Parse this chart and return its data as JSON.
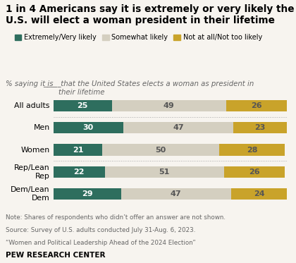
{
  "title": "1 in 4 Americans say it is extremely or very likely the\nU.S. will elect a woman president in their lifetime",
  "subtitle": "% saying it is _____ that the United States elects a woman as president in\ntheir lifetime",
  "subtitle_parts": [
    "% saying it is ",
    "_____",
    " that the United States elects a woman as president in\ntheir lifetime"
  ],
  "categories": [
    "All adults",
    "Men",
    "Women",
    "Rep/Lean\nRep",
    "Dem/Lean\nDem"
  ],
  "extremely_very": [
    25,
    30,
    21,
    22,
    29
  ],
  "somewhat": [
    49,
    47,
    50,
    51,
    47
  ],
  "not_at_all": [
    26,
    23,
    28,
    26,
    24
  ],
  "color_extremely": "#2e6e5e",
  "color_somewhat": "#d4cfc0",
  "color_not_at_all": "#c9a32a",
  "legend_labels": [
    "Extremely/Very likely",
    "Somewhat likely",
    "Not at all/Not too likely"
  ],
  "note_line1": "Note: Shares of respondents who didn’t offer an answer are not shown.",
  "note_line2": "Source: Survey of U.S. adults conducted July 31-Aug. 6, 2023.",
  "note_line3": "“Women and Political Leadership Ahead of the 2024 Election”",
  "footer": "PEW RESEARCH CENTER",
  "bg_color": "#f7f4ef",
  "bar_height": 0.52
}
